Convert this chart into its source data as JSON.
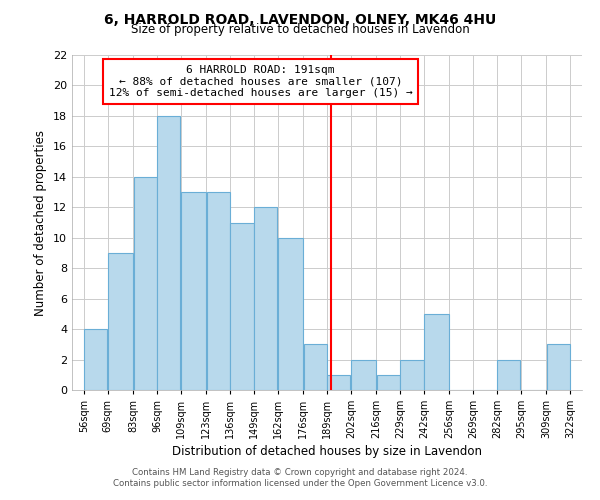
{
  "title": "6, HARROLD ROAD, LAVENDON, OLNEY, MK46 4HU",
  "subtitle": "Size of property relative to detached houses in Lavendon",
  "xlabel": "Distribution of detached houses by size in Lavendon",
  "ylabel": "Number of detached properties",
  "bar_color": "#b8d9ec",
  "bar_edge_color": "#6aaed6",
  "grid_color": "#cccccc",
  "vline_x": 191,
  "vline_color": "red",
  "annotation_title": "6 HARROLD ROAD: 191sqm",
  "annotation_line1": "← 88% of detached houses are smaller (107)",
  "annotation_line2": "12% of semi-detached houses are larger (15) →",
  "annotation_box_color": "white",
  "annotation_box_edge": "red",
  "bins": [
    56,
    69,
    83,
    96,
    109,
    123,
    136,
    149,
    162,
    176,
    189,
    202,
    216,
    229,
    242,
    256,
    269,
    282,
    295,
    309,
    322
  ],
  "counts": [
    4,
    9,
    14,
    18,
    13,
    13,
    11,
    12,
    10,
    3,
    1,
    2,
    1,
    2,
    5,
    0,
    0,
    2,
    0,
    3
  ],
  "tick_labels": [
    "56sqm",
    "69sqm",
    "83sqm",
    "96sqm",
    "109sqm",
    "123sqm",
    "136sqm",
    "149sqm",
    "162sqm",
    "176sqm",
    "189sqm",
    "202sqm",
    "216sqm",
    "229sqm",
    "242sqm",
    "256sqm",
    "269sqm",
    "282sqm",
    "295sqm",
    "309sqm",
    "322sqm"
  ],
  "ylim": [
    0,
    22
  ],
  "yticks": [
    0,
    2,
    4,
    6,
    8,
    10,
    12,
    14,
    16,
    18,
    20,
    22
  ],
  "footer_line1": "Contains HM Land Registry data © Crown copyright and database right 2024.",
  "footer_line2": "Contains public sector information licensed under the Open Government Licence v3.0."
}
